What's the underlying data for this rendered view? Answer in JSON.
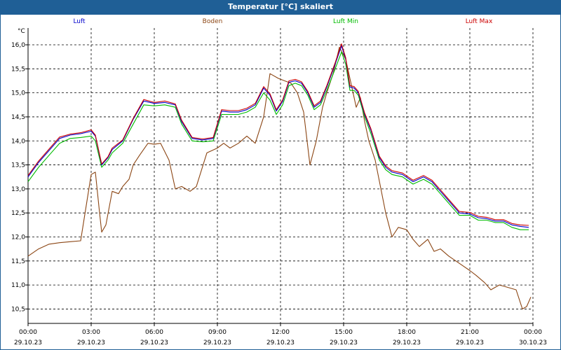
{
  "chart_data": {
    "type": "line",
    "title": "Temperatur [°C] skaliert",
    "ylabel": "°C",
    "ylim": [
      10.2,
      16.35
    ],
    "xlim": [
      0,
      24
    ],
    "grid": true,
    "y_ticks": [
      "16,0",
      "15,5",
      "15,0",
      "14,5",
      "14,0",
      "13,5",
      "13,0",
      "12,5",
      "12,0",
      "11,5",
      "11,0",
      "10,5"
    ],
    "y_tick_values": [
      16.0,
      15.5,
      15.0,
      14.5,
      14.0,
      13.5,
      13.0,
      12.5,
      12.0,
      11.5,
      11.0,
      10.5
    ],
    "x_ticks": [
      {
        "time": "00:00",
        "date": "29.10.23",
        "hour": 0
      },
      {
        "time": "03:00",
        "date": "29.10.23",
        "hour": 3
      },
      {
        "time": "06:00",
        "date": "29.10.23",
        "hour": 6
      },
      {
        "time": "09:00",
        "date": "29.10.23",
        "hour": 9
      },
      {
        "time": "12:00",
        "date": "29.10.23",
        "hour": 12
      },
      {
        "time": "15:00",
        "date": "29.10.23",
        "hour": 15
      },
      {
        "time": "18:00",
        "date": "29.10.23",
        "hour": 18
      },
      {
        "time": "21:00",
        "date": "29.10.23",
        "hour": 21
      },
      {
        "time": "00:00",
        "date": "30.10.23",
        "hour": 24
      }
    ],
    "series": [
      {
        "name": "Boden",
        "color": "#8b4513",
        "x": [
          0,
          0.5,
          1,
          1.5,
          2,
          2.5,
          3,
          3.2,
          3.4,
          3.5,
          3.7,
          4,
          4.3,
          4.5,
          4.8,
          5,
          5.3,
          5.7,
          6,
          6.3,
          6.7,
          7,
          7.3,
          7.7,
          8,
          8.5,
          9,
          9.3,
          9.6,
          10,
          10.4,
          10.8,
          11.2,
          11.5,
          11.9,
          12.2,
          12.5,
          12.8,
          13.1,
          13.4,
          13.7,
          14,
          14.2,
          14.5,
          14.8,
          15.1,
          15.4,
          15.6,
          15.8,
          16,
          16.2,
          16.5,
          17,
          17.3,
          17.6,
          18,
          18.3,
          18.6,
          19,
          19.3,
          19.6,
          20,
          20.5,
          21,
          21.3,
          21.7,
          22,
          22.4,
          22.8,
          23.2,
          23.5,
          23.7,
          23.9
        ],
        "y": [
          11.6,
          11.75,
          11.85,
          11.88,
          11.9,
          11.92,
          13.3,
          13.35,
          12.5,
          12.1,
          12.25,
          12.95,
          12.9,
          13.05,
          13.2,
          13.5,
          13.7,
          13.95,
          13.93,
          13.95,
          13.6,
          13.0,
          13.05,
          12.95,
          13.05,
          13.75,
          13.85,
          13.95,
          13.85,
          13.95,
          14.1,
          13.95,
          14.5,
          15.4,
          15.3,
          15.25,
          15.2,
          15.0,
          14.6,
          13.5,
          14.0,
          14.7,
          15.0,
          15.4,
          15.95,
          15.7,
          15.1,
          14.7,
          14.9,
          14.4,
          14.0,
          13.6,
          12.5,
          12.0,
          12.2,
          12.15,
          11.95,
          11.8,
          11.95,
          11.7,
          11.75,
          11.6,
          11.45,
          11.3,
          11.2,
          11.05,
          10.9,
          11.0,
          10.95,
          10.9,
          10.5,
          10.55,
          10.75
        ]
      },
      {
        "name": "Luft Min",
        "color": "#00bb00",
        "x": [
          0,
          0.5,
          1,
          1.5,
          2,
          2.5,
          3,
          3.2,
          3.5,
          3.8,
          4,
          4.5,
          5,
          5.5,
          6,
          6.5,
          7,
          7.3,
          7.8,
          8.3,
          8.8,
          9.2,
          9.6,
          10,
          10.4,
          10.8,
          11.2,
          11.5,
          11.8,
          12.1,
          12.4,
          12.7,
          13,
          13.3,
          13.6,
          13.9,
          14.2,
          14.6,
          14.9,
          15.1,
          15.3,
          15.5,
          15.7,
          16,
          16.3,
          16.7,
          17,
          17.3,
          17.8,
          18.3,
          18.8,
          19.2,
          19.6,
          20,
          20.5,
          21,
          21.4,
          21.8,
          22.2,
          22.6,
          23,
          23.4,
          23.8
        ],
        "y": [
          13.15,
          13.45,
          13.7,
          13.95,
          14.05,
          14.07,
          14.1,
          14.0,
          13.45,
          13.6,
          13.75,
          13.95,
          14.35,
          14.75,
          14.73,
          14.75,
          14.7,
          14.35,
          14.0,
          13.98,
          14.0,
          14.55,
          14.55,
          14.55,
          14.6,
          14.7,
          15.0,
          14.85,
          14.55,
          14.75,
          15.15,
          15.2,
          15.15,
          14.95,
          14.65,
          14.75,
          15.05,
          15.5,
          15.85,
          15.6,
          15.05,
          15.05,
          14.95,
          14.5,
          14.15,
          13.6,
          13.4,
          13.3,
          13.25,
          13.1,
          13.2,
          13.1,
          12.9,
          12.7,
          12.45,
          12.45,
          12.35,
          12.35,
          12.3,
          12.3,
          12.2,
          12.15,
          12.15
        ]
      },
      {
        "name": "Luft",
        "color": "#0000cc",
        "x": [
          0,
          0.5,
          1,
          1.5,
          2,
          2.5,
          3,
          3.2,
          3.5,
          3.8,
          4,
          4.5,
          5,
          5.5,
          6,
          6.5,
          7,
          7.3,
          7.8,
          8.3,
          8.8,
          9.2,
          9.6,
          10,
          10.4,
          10.8,
          11.2,
          11.5,
          11.8,
          12.1,
          12.4,
          12.7,
          13,
          13.3,
          13.6,
          13.9,
          14.2,
          14.6,
          14.9,
          15.1,
          15.3,
          15.5,
          15.7,
          16,
          16.3,
          16.7,
          17,
          17.3,
          17.8,
          18.3,
          18.8,
          19.2,
          19.6,
          20,
          20.5,
          21,
          21.4,
          21.8,
          22.2,
          22.6,
          23,
          23.4,
          23.8
        ],
        "y": [
          13.25,
          13.55,
          13.8,
          14.05,
          14.12,
          14.15,
          14.2,
          14.1,
          13.5,
          13.65,
          13.82,
          14.0,
          14.45,
          14.83,
          14.78,
          14.8,
          14.75,
          14.4,
          14.05,
          14.02,
          14.05,
          14.62,
          14.6,
          14.6,
          14.65,
          14.75,
          15.1,
          14.95,
          14.62,
          14.82,
          15.22,
          15.25,
          15.2,
          15.0,
          14.7,
          14.8,
          15.12,
          15.6,
          15.98,
          15.7,
          15.12,
          15.1,
          15.0,
          14.55,
          14.22,
          13.65,
          13.45,
          13.35,
          13.3,
          13.15,
          13.25,
          13.15,
          12.95,
          12.75,
          12.5,
          12.48,
          12.4,
          12.38,
          12.33,
          12.33,
          12.25,
          12.22,
          12.2
        ]
      },
      {
        "name": "Luft Max",
        "color": "#cc0000",
        "x": [
          0,
          0.5,
          1,
          1.5,
          2,
          2.5,
          3,
          3.2,
          3.5,
          3.8,
          4,
          4.5,
          5,
          5.5,
          6,
          6.5,
          7,
          7.3,
          7.8,
          8.3,
          8.8,
          9.2,
          9.6,
          10,
          10.4,
          10.8,
          11.2,
          11.5,
          11.8,
          12.1,
          12.4,
          12.7,
          13,
          13.3,
          13.6,
          13.9,
          14.2,
          14.6,
          14.9,
          15.1,
          15.3,
          15.5,
          15.7,
          16,
          16.3,
          16.7,
          17,
          17.3,
          17.8,
          18.3,
          18.8,
          19.2,
          19.6,
          20,
          20.5,
          21,
          21.4,
          21.8,
          22.2,
          22.6,
          23,
          23.4,
          23.8
        ],
        "y": [
          13.28,
          13.58,
          13.83,
          14.08,
          14.14,
          14.17,
          14.23,
          14.12,
          13.52,
          13.67,
          13.85,
          14.02,
          14.47,
          14.86,
          14.8,
          14.83,
          14.77,
          14.43,
          14.07,
          14.04,
          14.07,
          14.65,
          14.63,
          14.63,
          14.68,
          14.78,
          15.13,
          14.98,
          14.65,
          14.85,
          15.25,
          15.28,
          15.23,
          15.03,
          14.73,
          14.83,
          15.15,
          15.63,
          16.02,
          15.73,
          15.15,
          15.13,
          15.03,
          14.58,
          14.25,
          13.68,
          13.48,
          13.38,
          13.33,
          13.18,
          13.28,
          13.18,
          12.98,
          12.78,
          12.53,
          12.51,
          12.43,
          12.41,
          12.36,
          12.36,
          12.28,
          12.25,
          12.24
        ]
      }
    ],
    "legend": [
      {
        "name": "Luft",
        "color": "#0000cc"
      },
      {
        "name": "Boden",
        "color": "#8b4513"
      },
      {
        "name": "Luft Min",
        "color": "#00bb00"
      },
      {
        "name": "Luft Max",
        "color": "#cc0000"
      }
    ]
  }
}
